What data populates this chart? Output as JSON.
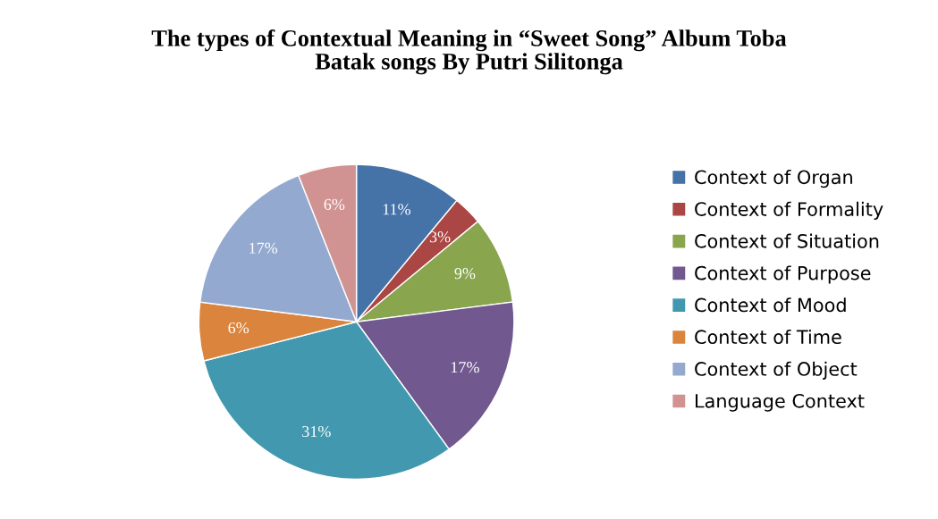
{
  "chart_data": {
    "type": "pie",
    "title": "The types of Contextual Meaning in “Sweet Song” Album Toba\nBatak songs By Putri Silitonga",
    "categories": [
      "Context of Organ",
      "Context of Formality",
      "Context of Situation",
      "Context of Purpose",
      "Context of Mood",
      "Context of Time",
      "Context of Object",
      "Language Context"
    ],
    "values": [
      11,
      3,
      9,
      17,
      31,
      6,
      17,
      6
    ],
    "colors": [
      "#4572a7",
      "#aa4643",
      "#89a54e",
      "#71588f",
      "#4198af",
      "#db843d",
      "#93a9cf",
      "#d19392"
    ],
    "value_labels": [
      "11%",
      "3%",
      "9%",
      "17%",
      "31%",
      "6%",
      "17%",
      "6%"
    ],
    "legend": "right"
  }
}
